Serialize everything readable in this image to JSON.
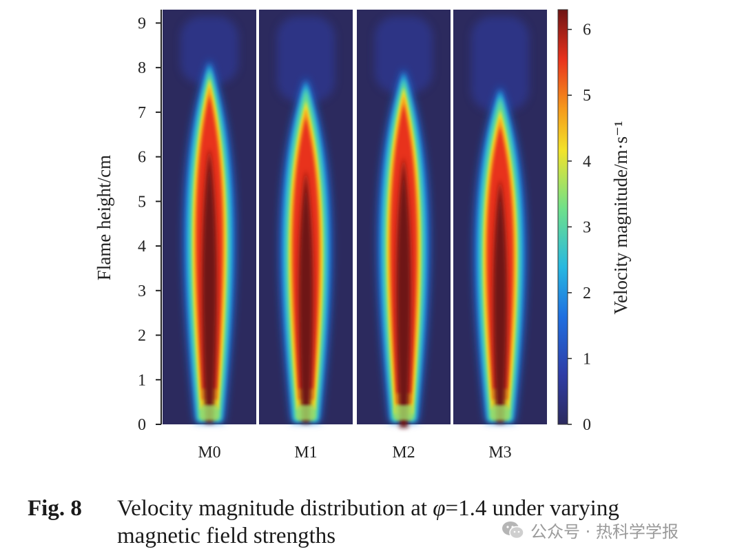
{
  "chart_data": {
    "type": "heatmap",
    "panels": [
      "M0",
      "M1",
      "M2",
      "M3"
    ],
    "ylabel": "Flame height/cm",
    "yticks": [
      "0",
      "1",
      "2",
      "3",
      "4",
      "5",
      "6",
      "7",
      "8",
      "9"
    ],
    "ylim": [
      0,
      9.3
    ],
    "colorbar": {
      "label": "Velocity magnitude/m·s⁻¹",
      "ticks": [
        "0",
        "1",
        "2",
        "3",
        "4",
        "5",
        "6"
      ],
      "range": [
        0,
        6.3
      ],
      "colormap": [
        "#2c2a5e",
        "#2f3da6",
        "#1f6fe0",
        "#27b8e0",
        "#6fe08a",
        "#f2e32a",
        "#f59a1c",
        "#e8321c",
        "#6e1414"
      ]
    },
    "flame_profiles": [
      {
        "name": "M0",
        "tip_height": 8.1,
        "core_top": 7.6,
        "core_bottom": 0.8,
        "peak_velocity": 6.3
      },
      {
        "name": "M1",
        "tip_height": 7.7,
        "core_top": 7.1,
        "core_bottom": 0.8,
        "peak_velocity": 6.1
      },
      {
        "name": "M2",
        "tip_height": 7.9,
        "core_top": 7.4,
        "core_bottom": 0.7,
        "peak_velocity": 6.2
      },
      {
        "name": "M3",
        "tip_height": 7.5,
        "core_top": 6.9,
        "core_bottom": 0.8,
        "peak_velocity": 5.9
      }
    ]
  },
  "caption": {
    "label": "Fig. 8",
    "text_before": "Velocity magnitude distribution at ",
    "symbol": "φ",
    "text_after": "=1.4 under varying",
    "line2": "magnetic field strengths"
  },
  "watermark": {
    "text": "公众号 · 热科学学报",
    "icon": "wechat-icon"
  }
}
